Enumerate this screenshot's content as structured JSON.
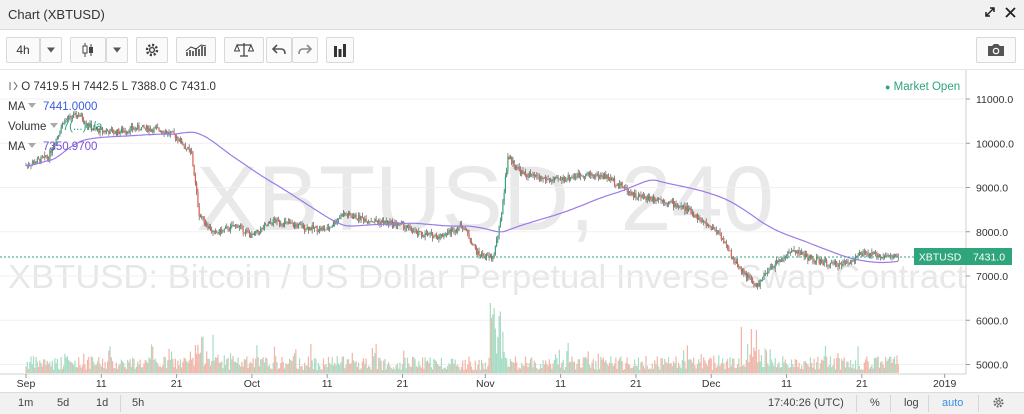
{
  "window": {
    "title": "Chart (XBTUSD)",
    "popout_icon": "popout-icon",
    "close_icon": "close-icon"
  },
  "toolbar": {
    "interval": "4h",
    "icons": [
      "candlestick-icon",
      "gear-icon",
      "indicators-icon",
      "compare-icon",
      "undo-icon",
      "redo-icon",
      "bars-icon",
      "camera-icon"
    ]
  },
  "chart": {
    "watermark_symbol": "XBTUSD, 240",
    "watermark_desc": "XBTUSD: Bitcoin / US Dollar Perpetual Inverse Swap Contract",
    "ohlc": {
      "o_label": "O",
      "o": "7419.5",
      "h_label": "H",
      "h": "7442.5",
      "l_label": "L",
      "l": "7388.0",
      "c_label": "C",
      "c": "7431.0"
    },
    "market_status": "Market Open",
    "ma1": {
      "label": "MA",
      "value": "7441.0000"
    },
    "volume": {
      "label": "Volume",
      "value": "7(...)n/a"
    },
    "ma2": {
      "label": "MA",
      "value": "7350.9700"
    },
    "price_tag_symbol": "XBTUSD",
    "price_tag_value": "7431.0",
    "colors": {
      "up": "#2ea57a",
      "down": "#e35a4a",
      "ma": "#9b7ae8",
      "up_vol": "#a6dcc4",
      "down_vol": "#f2b5a8"
    }
  },
  "chart_data": {
    "type": "candlestick",
    "yticks": [
      "11000.0",
      "10000.0",
      "9000.0",
      "8000.0",
      "7000.0",
      "6000.0",
      "5000.0"
    ],
    "xticks": [
      "Sep",
      "11",
      "21",
      "Oct",
      "11",
      "21",
      "Nov",
      "11",
      "21",
      "Dec",
      "11",
      "21",
      "2019"
    ],
    "price_path": [
      [
        "09-01",
        9500
      ],
      [
        "09-04",
        9700
      ],
      [
        "09-06",
        10500
      ],
      [
        "09-08",
        10650
      ],
      [
        "09-10",
        10300
      ],
      [
        "09-13",
        10250
      ],
      [
        "09-16",
        10350
      ],
      [
        "09-19",
        10300
      ],
      [
        "09-21",
        10150
      ],
      [
        "09-23",
        9750
      ],
      [
        "09-24",
        8400
      ],
      [
        "09-26",
        7950
      ],
      [
        "09-29",
        8150
      ],
      [
        "10-01",
        7900
      ],
      [
        "10-04",
        8250
      ],
      [
        "10-08",
        8100
      ],
      [
        "10-11",
        8050
      ],
      [
        "10-13",
        8400
      ],
      [
        "10-17",
        8250
      ],
      [
        "10-21",
        8150
      ],
      [
        "10-23",
        7950
      ],
      [
        "10-26",
        7900
      ],
      [
        "10-29",
        8150
      ],
      [
        "10-31",
        7500
      ],
      [
        "11-02",
        7400
      ],
      [
        "11-03",
        8200
      ],
      [
        "11-04",
        9700
      ],
      [
        "11-06",
        9300
      ],
      [
        "11-10",
        9150
      ],
      [
        "11-14",
        9300
      ],
      [
        "11-17",
        9250
      ],
      [
        "11-19",
        9050
      ],
      [
        "11-21",
        8800
      ],
      [
        "11-24",
        8750
      ],
      [
        "11-28",
        8500
      ],
      [
        "11-30",
        8200
      ],
      [
        "12-02",
        8000
      ],
      [
        "12-04",
        7350
      ],
      [
        "12-06",
        6950
      ],
      [
        "12-07",
        6750
      ],
      [
        "12-09",
        7200
      ],
      [
        "12-12",
        7600
      ],
      [
        "12-14",
        7400
      ],
      [
        "12-17",
        7250
      ],
      [
        "12-19",
        7300
      ],
      [
        "12-21",
        7500
      ],
      [
        "12-24",
        7450
      ],
      [
        "12-26",
        7431
      ]
    ]
  },
  "bottombar": {
    "ranges": [
      "1m",
      "5d",
      "1d",
      "5h"
    ],
    "time": "17:40:26 (UTC)",
    "percent": "%",
    "log": "log",
    "auto": "auto"
  }
}
